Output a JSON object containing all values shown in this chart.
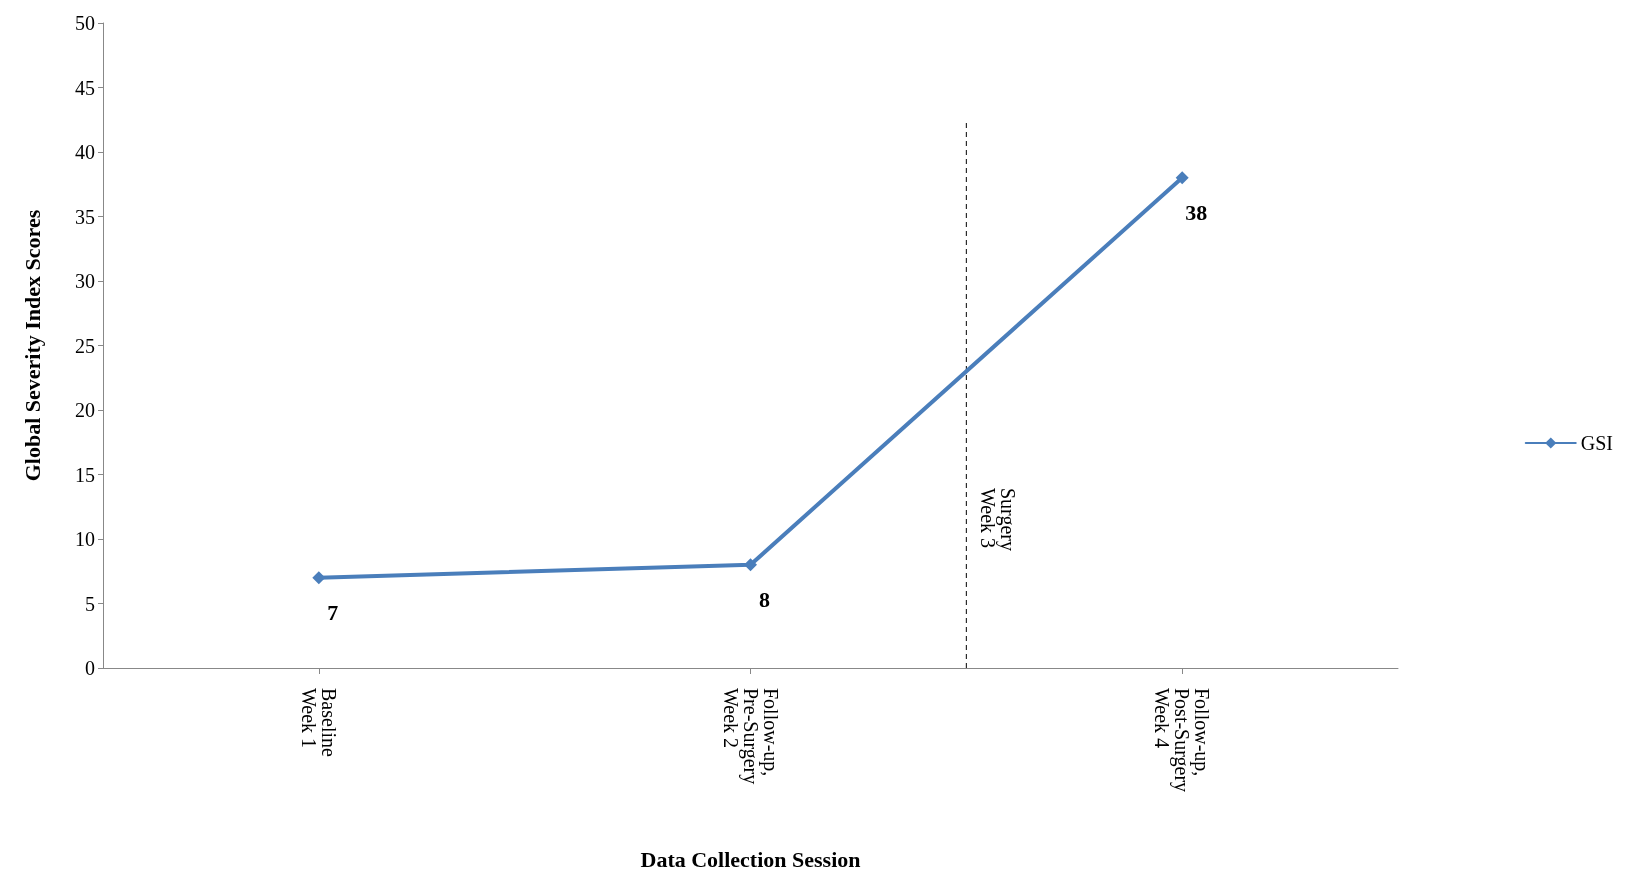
{
  "chart_data": {
    "type": "line",
    "xlabel": "Data Collection Session",
    "ylabel": "Global Severity Index Scores",
    "categories": [
      "Baseline\nWeek 1",
      "Follow-up,\nPre-Surgery\nWeek 2",
      "Follow-up,\nPost-Surgery\nWeek 4"
    ],
    "series": [
      {
        "name": "GSI",
        "color": "#4a7ebb",
        "values": [
          7,
          8,
          38
        ]
      }
    ],
    "ylim": [
      0,
      50
    ],
    "yticks": [
      0,
      5,
      10,
      15,
      20,
      25,
      30,
      35,
      40,
      45,
      50
    ],
    "annotations": [
      "Surgery\nWeek 3"
    ],
    "data_labels": true,
    "grid": false,
    "legend": "right",
    "marker": "diamond",
    "line_style": "solid"
  }
}
